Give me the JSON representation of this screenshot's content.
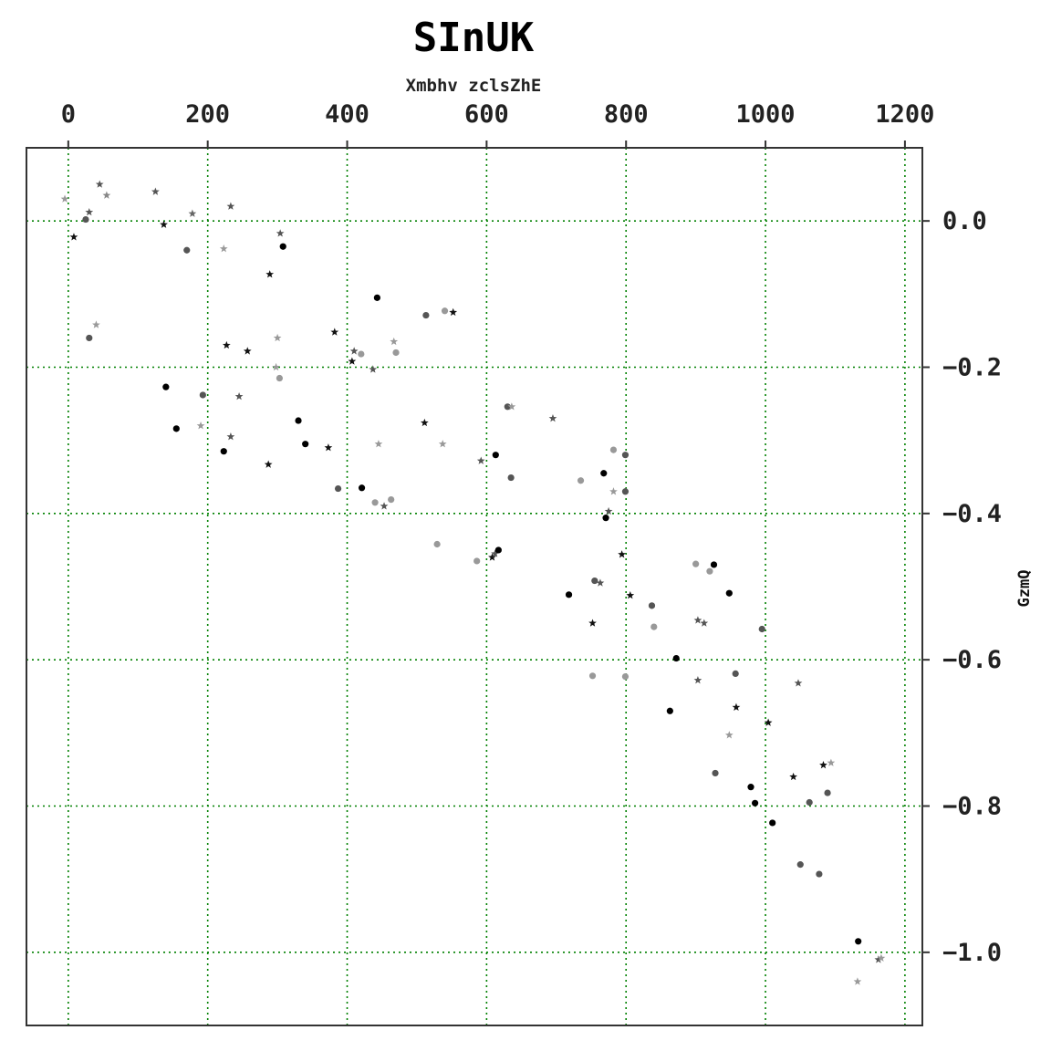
{
  "chart_data": {
    "type": "scatter",
    "title": "SInUK",
    "xlabel": "Xmbhv zclsZhE",
    "ylabel": "GzmQ",
    "xlim": [
      -60,
      1225
    ],
    "ylim": [
      -1.1,
      0.1
    ],
    "x_ticks": [
      0,
      200,
      400,
      600,
      800,
      1000,
      1200
    ],
    "y_ticks": [
      0.0,
      -0.2,
      -0.4,
      -0.6,
      -0.8,
      -1.0
    ],
    "x_tick_labels": [
      "0",
      "200",
      "400",
      "600",
      "800",
      "1000",
      "1200"
    ],
    "y_tick_labels": [
      "0.0",
      "−0.2",
      "−0.4",
      "−0.6",
      "−0.8",
      "−1.0"
    ],
    "x_axis_position": "top",
    "y_axis_position": "right",
    "grid": true,
    "grid_color": "#008000",
    "points": [
      {
        "x": -5,
        "y": 0.03,
        "m": "star",
        "c": "#999999"
      },
      {
        "x": 45,
        "y": 0.05,
        "m": "star",
        "c": "#555555"
      },
      {
        "x": 55,
        "y": 0.035,
        "m": "star",
        "c": "#888888"
      },
      {
        "x": 30,
        "y": 0.012,
        "m": "star",
        "c": "#555555"
      },
      {
        "x": 25,
        "y": 0.002,
        "m": "circle",
        "c": "#555555"
      },
      {
        "x": 8,
        "y": -0.022,
        "m": "star",
        "c": "#111111"
      },
      {
        "x": 125,
        "y": 0.04,
        "m": "star",
        "c": "#555555"
      },
      {
        "x": 137,
        "y": -0.005,
        "m": "star",
        "c": "#111111"
      },
      {
        "x": 178,
        "y": 0.01,
        "m": "star",
        "c": "#666666"
      },
      {
        "x": 170,
        "y": -0.04,
        "m": "circle",
        "c": "#555555"
      },
      {
        "x": 233,
        "y": 0.02,
        "m": "star",
        "c": "#555555"
      },
      {
        "x": 223,
        "y": -0.038,
        "m": "star",
        "c": "#999999"
      },
      {
        "x": 304,
        "y": -0.017,
        "m": "star",
        "c": "#555555"
      },
      {
        "x": 308,
        "y": -0.035,
        "m": "circle",
        "c": "#000000"
      },
      {
        "x": 289,
        "y": -0.073,
        "m": "star",
        "c": "#111111"
      },
      {
        "x": 40,
        "y": -0.142,
        "m": "star",
        "c": "#999999"
      },
      {
        "x": 30,
        "y": -0.16,
        "m": "circle",
        "c": "#555555"
      },
      {
        "x": 227,
        "y": -0.17,
        "m": "star",
        "c": "#111111"
      },
      {
        "x": 257,
        "y": -0.178,
        "m": "star",
        "c": "#111111"
      },
      {
        "x": 300,
        "y": -0.16,
        "m": "star",
        "c": "#999999"
      },
      {
        "x": 298,
        "y": -0.2,
        "m": "star",
        "c": "#999999"
      },
      {
        "x": 303,
        "y": -0.215,
        "m": "circle",
        "c": "#999999"
      },
      {
        "x": 140,
        "y": -0.227,
        "m": "circle",
        "c": "#000000"
      },
      {
        "x": 193,
        "y": -0.238,
        "m": "circle",
        "c": "#555555"
      },
      {
        "x": 245,
        "y": -0.24,
        "m": "star",
        "c": "#555555"
      },
      {
        "x": 155,
        "y": -0.284,
        "m": "circle",
        "c": "#000000"
      },
      {
        "x": 190,
        "y": -0.28,
        "m": "star",
        "c": "#999999"
      },
      {
        "x": 233,
        "y": -0.295,
        "m": "star",
        "c": "#555555"
      },
      {
        "x": 223,
        "y": -0.315,
        "m": "circle",
        "c": "#000000"
      },
      {
        "x": 287,
        "y": -0.333,
        "m": "star",
        "c": "#111111"
      },
      {
        "x": 330,
        "y": -0.273,
        "m": "circle",
        "c": "#000000"
      },
      {
        "x": 340,
        "y": -0.305,
        "m": "circle",
        "c": "#000000"
      },
      {
        "x": 373,
        "y": -0.31,
        "m": "star",
        "c": "#111111"
      },
      {
        "x": 382,
        "y": -0.152,
        "m": "star",
        "c": "#111111"
      },
      {
        "x": 443,
        "y": -0.105,
        "m": "circle",
        "c": "#000000"
      },
      {
        "x": 410,
        "y": -0.178,
        "m": "star",
        "c": "#555555"
      },
      {
        "x": 407,
        "y": -0.192,
        "m": "star",
        "c": "#111111"
      },
      {
        "x": 420,
        "y": -0.182,
        "m": "circle",
        "c": "#999999"
      },
      {
        "x": 437,
        "y": -0.203,
        "m": "star",
        "c": "#555555"
      },
      {
        "x": 467,
        "y": -0.165,
        "m": "star",
        "c": "#999999"
      },
      {
        "x": 470,
        "y": -0.18,
        "m": "circle",
        "c": "#999999"
      },
      {
        "x": 513,
        "y": -0.129,
        "m": "circle",
        "c": "#555555"
      },
      {
        "x": 540,
        "y": -0.123,
        "m": "circle",
        "c": "#999999"
      },
      {
        "x": 552,
        "y": -0.125,
        "m": "star",
        "c": "#111111"
      },
      {
        "x": 387,
        "y": -0.366,
        "m": "circle",
        "c": "#555555"
      },
      {
        "x": 421,
        "y": -0.365,
        "m": "circle",
        "c": "#000000"
      },
      {
        "x": 445,
        "y": -0.305,
        "m": "star",
        "c": "#999999"
      },
      {
        "x": 440,
        "y": -0.385,
        "m": "circle",
        "c": "#999999"
      },
      {
        "x": 453,
        "y": -0.39,
        "m": "star",
        "c": "#555555"
      },
      {
        "x": 463,
        "y": -0.381,
        "m": "circle",
        "c": "#999999"
      },
      {
        "x": 511,
        "y": -0.276,
        "m": "star",
        "c": "#111111"
      },
      {
        "x": 537,
        "y": -0.305,
        "m": "star",
        "c": "#999999"
      },
      {
        "x": 529,
        "y": -0.442,
        "m": "circle",
        "c": "#999999"
      },
      {
        "x": 586,
        "y": -0.465,
        "m": "circle",
        "c": "#999999"
      },
      {
        "x": 592,
        "y": -0.328,
        "m": "star",
        "c": "#555555"
      },
      {
        "x": 608,
        "y": -0.46,
        "m": "star",
        "c": "#111111"
      },
      {
        "x": 612,
        "y": -0.455,
        "m": "star",
        "c": "#555555"
      },
      {
        "x": 617,
        "y": -0.45,
        "m": "circle",
        "c": "#000000"
      },
      {
        "x": 613,
        "y": -0.32,
        "m": "circle",
        "c": "#000000"
      },
      {
        "x": 630,
        "y": -0.254,
        "m": "circle",
        "c": "#555555"
      },
      {
        "x": 636,
        "y": -0.254,
        "m": "star",
        "c": "#999999"
      },
      {
        "x": 635,
        "y": -0.351,
        "m": "circle",
        "c": "#555555"
      },
      {
        "x": 695,
        "y": -0.27,
        "m": "star",
        "c": "#555555"
      },
      {
        "x": 718,
        "y": -0.511,
        "m": "circle",
        "c": "#000000"
      },
      {
        "x": 735,
        "y": -0.355,
        "m": "circle",
        "c": "#999999"
      },
      {
        "x": 755,
        "y": -0.492,
        "m": "circle",
        "c": "#555555"
      },
      {
        "x": 763,
        "y": -0.495,
        "m": "star",
        "c": "#555555"
      },
      {
        "x": 752,
        "y": -0.55,
        "m": "star",
        "c": "#111111"
      },
      {
        "x": 752,
        "y": -0.622,
        "m": "circle",
        "c": "#999999"
      },
      {
        "x": 768,
        "y": -0.345,
        "m": "circle",
        "c": "#000000"
      },
      {
        "x": 775,
        "y": -0.397,
        "m": "star",
        "c": "#555555"
      },
      {
        "x": 771,
        "y": -0.406,
        "m": "circle",
        "c": "#000000"
      },
      {
        "x": 782,
        "y": -0.313,
        "m": "circle",
        "c": "#999999"
      },
      {
        "x": 782,
        "y": -0.37,
        "m": "star",
        "c": "#999999"
      },
      {
        "x": 799,
        "y": -0.32,
        "m": "circle",
        "c": "#555555"
      },
      {
        "x": 799,
        "y": -0.37,
        "m": "circle",
        "c": "#555555"
      },
      {
        "x": 794,
        "y": -0.456,
        "m": "star",
        "c": "#111111"
      },
      {
        "x": 806,
        "y": -0.512,
        "m": "star",
        "c": "#111111"
      },
      {
        "x": 799,
        "y": -0.623,
        "m": "circle",
        "c": "#999999"
      },
      {
        "x": 837,
        "y": -0.526,
        "m": "circle",
        "c": "#555555"
      },
      {
        "x": 840,
        "y": -0.555,
        "m": "circle",
        "c": "#999999"
      },
      {
        "x": 872,
        "y": -0.598,
        "m": "circle",
        "c": "#000000"
      },
      {
        "x": 863,
        "y": -0.67,
        "m": "circle",
        "c": "#000000"
      },
      {
        "x": 900,
        "y": -0.469,
        "m": "circle",
        "c": "#999999"
      },
      {
        "x": 903,
        "y": -0.546,
        "m": "star",
        "c": "#555555"
      },
      {
        "x": 912,
        "y": -0.55,
        "m": "star",
        "c": "#555555"
      },
      {
        "x": 903,
        "y": -0.628,
        "m": "star",
        "c": "#555555"
      },
      {
        "x": 920,
        "y": -0.479,
        "m": "circle",
        "c": "#999999"
      },
      {
        "x": 926,
        "y": -0.47,
        "m": "circle",
        "c": "#000000"
      },
      {
        "x": 948,
        "y": -0.509,
        "m": "circle",
        "c": "#000000"
      },
      {
        "x": 957,
        "y": -0.619,
        "m": "circle",
        "c": "#555555"
      },
      {
        "x": 958,
        "y": -0.665,
        "m": "star",
        "c": "#111111"
      },
      {
        "x": 948,
        "y": -0.703,
        "m": "star",
        "c": "#999999"
      },
      {
        "x": 928,
        "y": -0.755,
        "m": "circle",
        "c": "#555555"
      },
      {
        "x": 995,
        "y": -0.558,
        "m": "circle",
        "c": "#555555"
      },
      {
        "x": 979,
        "y": -0.774,
        "m": "circle",
        "c": "#000000"
      },
      {
        "x": 985,
        "y": -0.796,
        "m": "circle",
        "c": "#000000"
      },
      {
        "x": 1004,
        "y": -0.686,
        "m": "star",
        "c": "#111111"
      },
      {
        "x": 1010,
        "y": -0.823,
        "m": "circle",
        "c": "#000000"
      },
      {
        "x": 1047,
        "y": -0.632,
        "m": "star",
        "c": "#555555"
      },
      {
        "x": 1040,
        "y": -0.76,
        "m": "star",
        "c": "#111111"
      },
      {
        "x": 1050,
        "y": -0.88,
        "m": "circle",
        "c": "#555555"
      },
      {
        "x": 1063,
        "y": -0.795,
        "m": "circle",
        "c": "#555555"
      },
      {
        "x": 1077,
        "y": -0.893,
        "m": "circle",
        "c": "#555555"
      },
      {
        "x": 1083,
        "y": -0.744,
        "m": "star",
        "c": "#111111"
      },
      {
        "x": 1094,
        "y": -0.741,
        "m": "star",
        "c": "#999999"
      },
      {
        "x": 1089,
        "y": -0.782,
        "m": "circle",
        "c": "#555555"
      },
      {
        "x": 1133,
        "y": -0.985,
        "m": "circle",
        "c": "#000000"
      },
      {
        "x": 1132,
        "y": -1.04,
        "m": "star",
        "c": "#999999"
      },
      {
        "x": 1162,
        "y": -1.01,
        "m": "star",
        "c": "#555555"
      },
      {
        "x": 1166,
        "y": -1.008,
        "m": "star",
        "c": "#999999"
      }
    ]
  }
}
